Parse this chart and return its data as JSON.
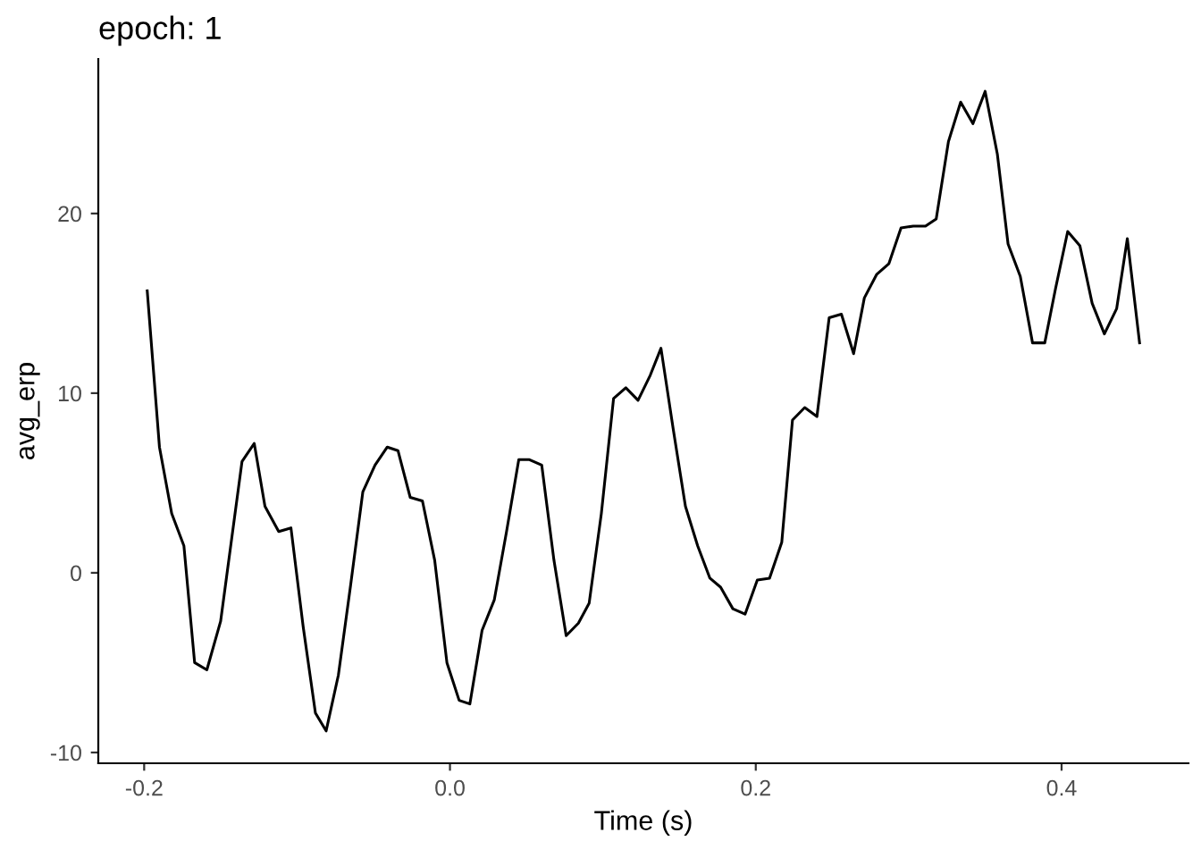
{
  "chart_data": {
    "type": "line",
    "title": "epoch: 1",
    "xlabel": "Time (s)",
    "ylabel": "avg_erp",
    "x": [
      -0.198,
      -0.19,
      -0.182,
      -0.174,
      -0.167,
      -0.159,
      -0.15,
      -0.136,
      -0.128,
      -0.121,
      -0.112,
      -0.104,
      -0.096,
      -0.088,
      -0.081,
      -0.073,
      -0.065,
      -0.057,
      -0.049,
      -0.041,
      -0.034,
      -0.026,
      -0.018,
      -0.01,
      -0.002,
      0.006,
      0.013,
      0.021,
      0.029,
      0.037,
      0.045,
      0.052,
      0.06,
      0.068,
      0.076,
      0.084,
      0.091,
      0.099,
      0.107,
      0.115,
      0.123,
      0.131,
      0.138,
      0.146,
      0.154,
      0.162,
      0.17,
      0.177,
      0.185,
      0.193,
      0.201,
      0.209,
      0.217,
      0.224,
      0.232,
      0.24,
      0.248,
      0.256,
      0.264,
      0.271,
      0.279,
      0.287,
      0.295,
      0.303,
      0.311,
      0.318,
      0.326,
      0.334,
      0.342,
      0.35,
      0.358,
      0.365,
      0.373,
      0.381,
      0.389,
      0.396,
      0.404,
      0.412,
      0.42,
      0.428,
      0.436,
      0.443,
      0.451
    ],
    "series": [
      {
        "color": "#000000",
        "values": [
          15.7,
          7.0,
          3.3,
          1.5,
          -5.0,
          -5.4,
          -2.7,
          6.2,
          7.2,
          3.7,
          2.3,
          2.5,
          -3.0,
          -7.8,
          -8.8,
          -5.7,
          -0.7,
          4.5,
          6.0,
          7.0,
          6.8,
          4.2,
          4.0,
          0.7,
          -5.0,
          -7.1,
          -7.3,
          -3.2,
          -1.5,
          2.3,
          6.3,
          6.3,
          6.0,
          0.7,
          -3.5,
          -2.8,
          -1.7,
          3.3,
          9.7,
          10.3,
          9.6,
          11.0,
          12.5,
          8.0,
          3.7,
          1.5,
          -0.3,
          -0.8,
          -2.0,
          -2.3,
          -0.4,
          -0.3,
          1.7,
          8.5,
          9.2,
          8.7,
          14.2,
          14.4,
          12.2,
          15.3,
          16.6,
          17.2,
          19.2,
          19.3,
          19.3,
          19.7,
          24.0,
          26.2,
          25.0,
          26.8,
          23.3,
          18.3,
          16.5,
          12.8,
          12.8,
          15.8,
          19.0,
          18.2,
          15.0,
          13.3,
          14.7,
          18.6,
          12.8
        ]
      }
    ],
    "xlim": [
      -0.23,
      0.483
    ],
    "ylim": [
      -10.6,
      28.6
    ],
    "xticks": [
      -0.2,
      {
        "value": 0,
        "label": "0.0"
      },
      0.2,
      0.4
    ],
    "yticks": [
      -10,
      0,
      10,
      20
    ],
    "grid": false
  }
}
